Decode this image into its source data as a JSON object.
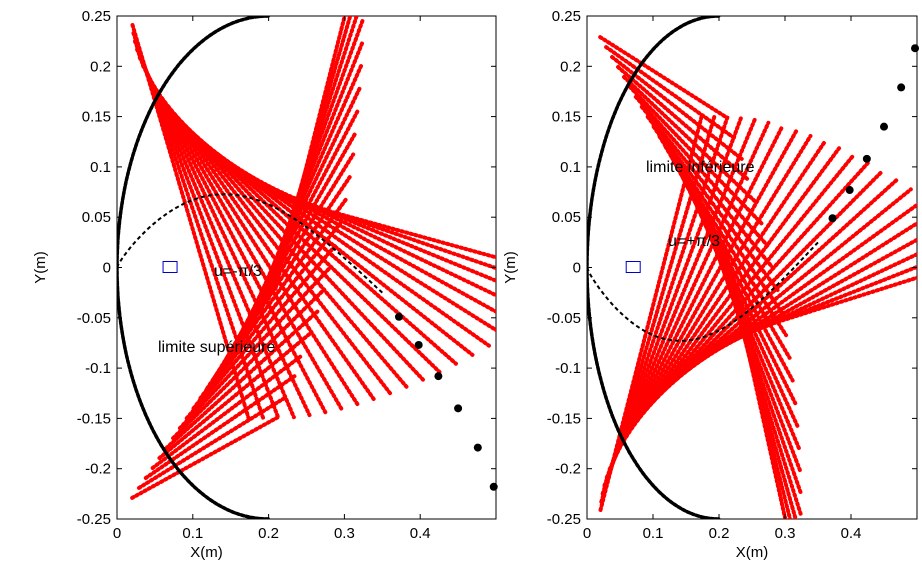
{
  "chart_data": [
    {
      "type": "scatter",
      "panel": "left",
      "xlabel": "X(m)",
      "ylabel": "Y(m)",
      "xlim": [
        0,
        0.5
      ],
      "ylim": [
        -0.25,
        0.25
      ],
      "xticks": [
        "0",
        "0.1",
        "0.2",
        "0.3",
        "0.4"
      ],
      "yticks": [
        "0.25",
        "0.2",
        "0.15",
        "0.1",
        "0.05",
        "0",
        "-0.05",
        "-0.1",
        "-0.15",
        "-0.2",
        "-0.25"
      ],
      "annotations": [
        "u=-π/3",
        "limite supérieure"
      ],
      "marker_square": {
        "x": 0.07,
        "y": 0.0
      },
      "series": [
        {
          "color": "#000000",
          "marker": "large-dot",
          "x": [
            0.372,
            0.398,
            0.424,
            0.45,
            0.476,
            0.497
          ],
          "y": [
            -0.049,
            -0.077,
            -0.108,
            -0.14,
            -0.179,
            -0.218
          ]
        }
      ]
    },
    {
      "type": "scatter",
      "panel": "right",
      "xlabel": "X(m)",
      "ylabel": "Y(m)",
      "xlim": [
        0,
        0.5
      ],
      "ylim": [
        -0.25,
        0.25
      ],
      "xticks": [
        "0",
        "0.1",
        "0.2",
        "0.3",
        "0.4"
      ],
      "yticks": [
        "0.25",
        "0.2",
        "0.15",
        "0.1",
        "0.05",
        "0",
        "-0.05",
        "-0.1",
        "-0.15",
        "-0.2",
        "-0.25"
      ],
      "annotations": [
        "limite inférieure",
        "u=+π/3"
      ],
      "marker_square": {
        "x": 0.07,
        "y": 0.0
      },
      "series": [
        {
          "color": "#000000",
          "marker": "large-dot",
          "x": [
            0.372,
            0.398,
            0.424,
            0.45,
            0.476,
            0.497
          ],
          "y": [
            0.049,
            0.077,
            0.108,
            0.14,
            0.179,
            0.218
          ]
        }
      ]
    }
  ]
}
